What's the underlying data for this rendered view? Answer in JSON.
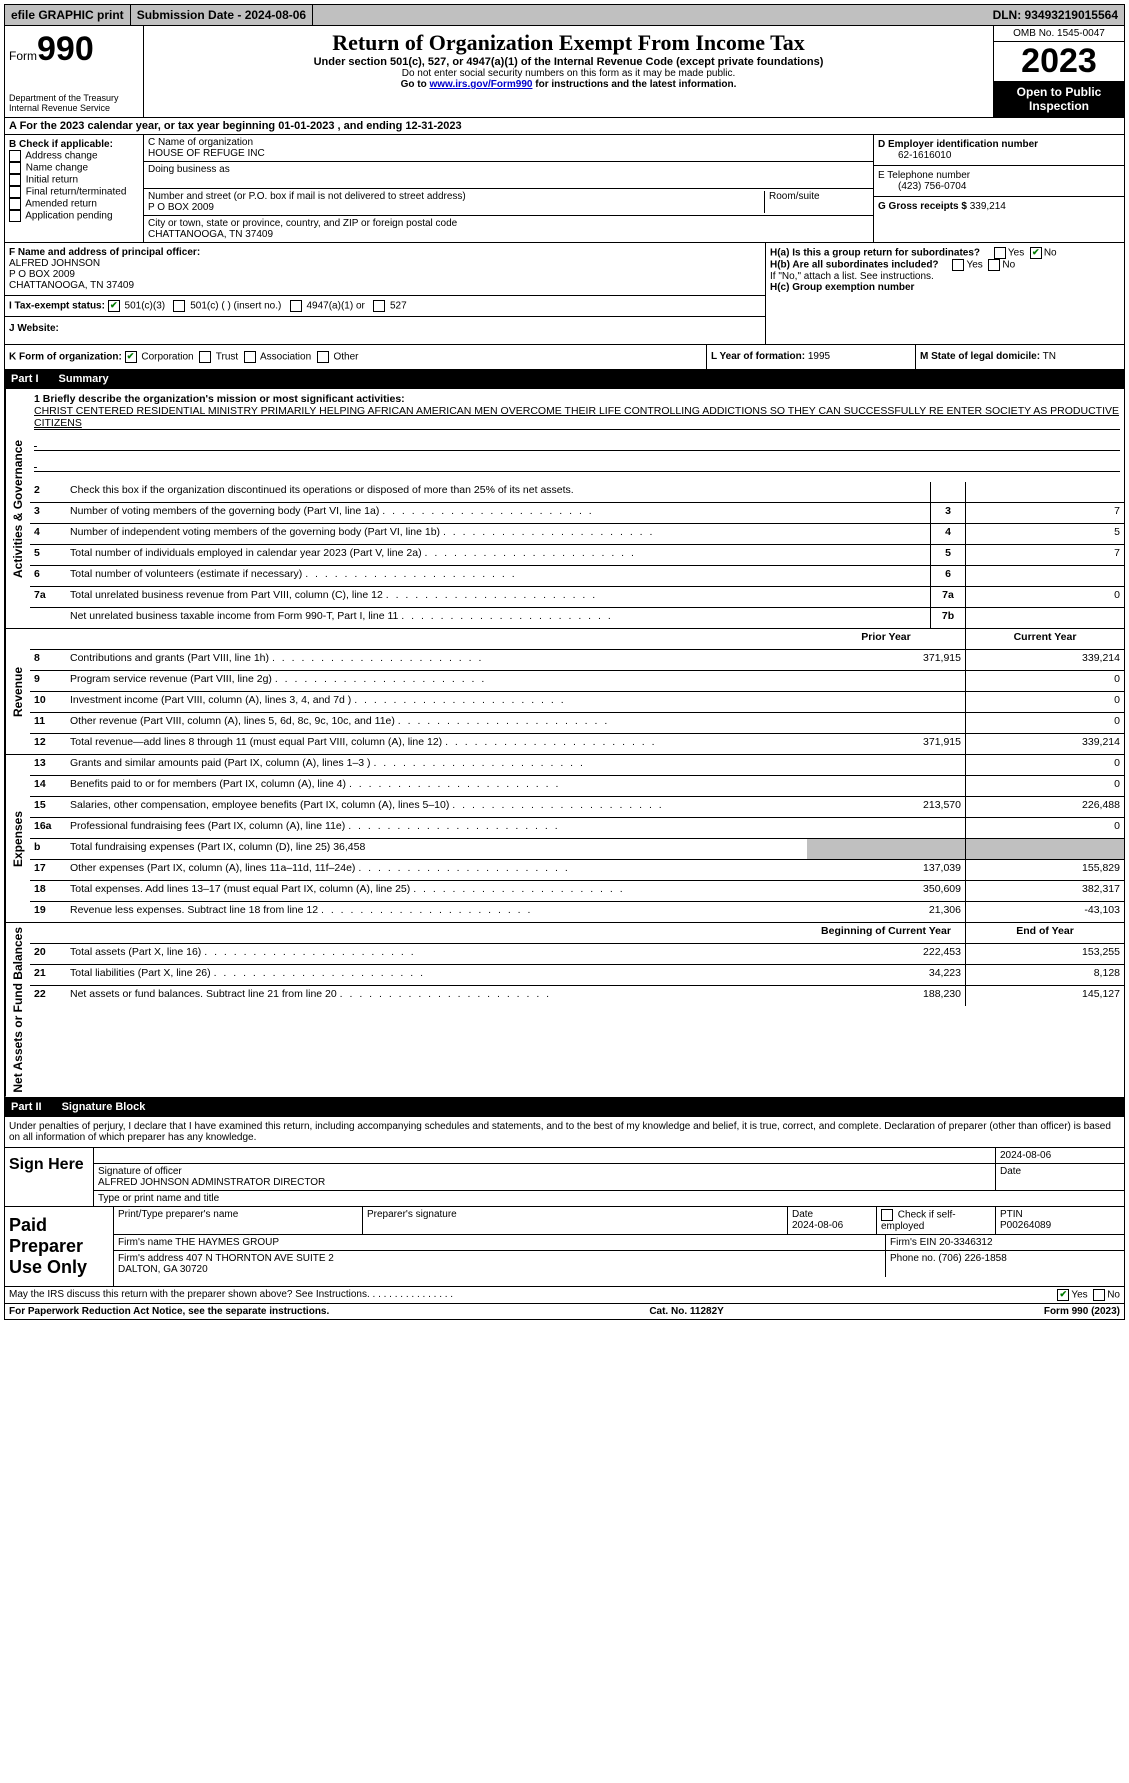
{
  "topbar": {
    "efile": "efile GRAPHIC print",
    "submission": "Submission Date - 2024-08-06",
    "dln": "DLN: 93493219015564"
  },
  "header": {
    "form_label": "Form",
    "form_num": "990",
    "dept": "Department of the Treasury\nInternal Revenue Service",
    "title": "Return of Organization Exempt From Income Tax",
    "sub": "Under section 501(c), 527, or 4947(a)(1) of the Internal Revenue Code (except private foundations)",
    "ssn_note": "Do not enter social security numbers on this form as it may be made public.",
    "goto": "Go to www.irs.gov/Form990 for instructions and the latest information.",
    "omb": "OMB No. 1545-0047",
    "year": "2023",
    "open": "Open to Public Inspection"
  },
  "row_a": "A For the 2023 calendar year, or tax year beginning 01-01-2023  , and ending 12-31-2023",
  "box_b": {
    "label": "B Check if applicable:",
    "items": [
      "Address change",
      "Name change",
      "Initial return",
      "Final return/terminated",
      "Amended return",
      "Application pending"
    ]
  },
  "box_c": {
    "name_label": "C Name of organization",
    "name": "HOUSE OF REFUGE INC",
    "dba_label": "Doing business as",
    "street_label": "Number and street (or P.O. box if mail is not delivered to street address)",
    "street": "P O BOX 2009",
    "room_label": "Room/suite",
    "city_label": "City or town, state or province, country, and ZIP or foreign postal code",
    "city": "CHATTANOOGA, TN  37409"
  },
  "box_d": {
    "ein_label": "D Employer identification number",
    "ein": "62-1616010",
    "phone_label": "E Telephone number",
    "phone": "(423) 756-0704",
    "gross_label": "G Gross receipts $",
    "gross": "339,214"
  },
  "box_f": {
    "label": "F  Name and address of principal officer:",
    "name": "ALFRED JOHNSON",
    "addr1": "P O BOX 2009",
    "addr2": "CHATTANOOGA, TN  37409"
  },
  "box_h": {
    "ha": "H(a)  Is this a group return for subordinates?",
    "hb": "H(b)  Are all subordinates included?",
    "hb_note": "If \"No,\" attach a list. See instructions.",
    "hc": "H(c)  Group exemption number ",
    "yes": "Yes",
    "no": "No"
  },
  "box_i": {
    "label": "I  Tax-exempt status:",
    "opt1": "501(c)(3)",
    "opt2": "501(c) (  ) (insert no.)",
    "opt3": "4947(a)(1) or",
    "opt4": "527"
  },
  "box_j": {
    "label": "J  Website: "
  },
  "box_k": {
    "label": "K Form of organization:",
    "corp": "Corporation",
    "trust": "Trust",
    "assoc": "Association",
    "other": "Other"
  },
  "box_l": {
    "label": "L Year of formation:",
    "val": "1995"
  },
  "box_m": {
    "label": "M State of legal domicile:",
    "val": "TN"
  },
  "part1": {
    "label": "Part I",
    "title": "Summary"
  },
  "side": {
    "ag": "Activities & Governance",
    "rev": "Revenue",
    "exp": "Expenses",
    "na": "Net Assets or Fund Balances"
  },
  "mission": {
    "label": "1  Briefly describe the organization's mission or most significant activities:",
    "text": "CHRIST CENTERED RESIDENTIAL MINISTRY PRIMARILY HELPING AFRICAN AMERICAN MEN OVERCOME THEIR LIFE CONTROLLING ADDICTIONS SO THEY CAN SUCCESSFULLY RE ENTER SOCIETY AS PRODUCTIVE CITIZENS"
  },
  "lines_gov": [
    {
      "n": "2",
      "t": "Check this box  if the organization discontinued its operations or disposed of more than 25% of its net assets.",
      "k": "",
      "v": ""
    },
    {
      "n": "3",
      "t": "Number of voting members of the governing body (Part VI, line 1a)",
      "k": "3",
      "v": "7"
    },
    {
      "n": "4",
      "t": "Number of independent voting members of the governing body (Part VI, line 1b)",
      "k": "4",
      "v": "5"
    },
    {
      "n": "5",
      "t": "Total number of individuals employed in calendar year 2023 (Part V, line 2a)",
      "k": "5",
      "v": "7"
    },
    {
      "n": "6",
      "t": "Total number of volunteers (estimate if necessary)",
      "k": "6",
      "v": ""
    },
    {
      "n": "7a",
      "t": "Total unrelated business revenue from Part VIII, column (C), line 12",
      "k": "7a",
      "v": "0"
    },
    {
      "n": "",
      "t": "Net unrelated business taxable income from Form 990-T, Part I, line 11",
      "k": "7b",
      "v": ""
    }
  ],
  "cols": {
    "prior": "Prior Year",
    "current": "Current Year",
    "begin": "Beginning of Current Year",
    "end": "End of Year"
  },
  "lines_rev": [
    {
      "n": "8",
      "t": "Contributions and grants (Part VIII, line 1h)",
      "p": "371,915",
      "c": "339,214"
    },
    {
      "n": "9",
      "t": "Program service revenue (Part VIII, line 2g)",
      "p": "",
      "c": "0"
    },
    {
      "n": "10",
      "t": "Investment income (Part VIII, column (A), lines 3, 4, and 7d )",
      "p": "",
      "c": "0"
    },
    {
      "n": "11",
      "t": "Other revenue (Part VIII, column (A), lines 5, 6d, 8c, 9c, 10c, and 11e)",
      "p": "",
      "c": "0"
    },
    {
      "n": "12",
      "t": "Total revenue—add lines 8 through 11 (must equal Part VIII, column (A), line 12)",
      "p": "371,915",
      "c": "339,214"
    }
  ],
  "lines_exp": [
    {
      "n": "13",
      "t": "Grants and similar amounts paid (Part IX, column (A), lines 1–3 )",
      "p": "",
      "c": "0"
    },
    {
      "n": "14",
      "t": "Benefits paid to or for members (Part IX, column (A), line 4)",
      "p": "",
      "c": "0"
    },
    {
      "n": "15",
      "t": "Salaries, other compensation, employee benefits (Part IX, column (A), lines 5–10)",
      "p": "213,570",
      "c": "226,488"
    },
    {
      "n": "16a",
      "t": "Professional fundraising fees (Part IX, column (A), line 11e)",
      "p": "",
      "c": "0"
    },
    {
      "n": "b",
      "t": "Total fundraising expenses (Part IX, column (D), line 25) 36,458",
      "p": "",
      "c": "",
      "shade": true
    },
    {
      "n": "17",
      "t": "Other expenses (Part IX, column (A), lines 11a–11d, 11f–24e)",
      "p": "137,039",
      "c": "155,829"
    },
    {
      "n": "18",
      "t": "Total expenses. Add lines 13–17 (must equal Part IX, column (A), line 25)",
      "p": "350,609",
      "c": "382,317"
    },
    {
      "n": "19",
      "t": "Revenue less expenses. Subtract line 18 from line 12",
      "p": "21,306",
      "c": "-43,103"
    }
  ],
  "lines_na": [
    {
      "n": "20",
      "t": "Total assets (Part X, line 16)",
      "p": "222,453",
      "c": "153,255"
    },
    {
      "n": "21",
      "t": "Total liabilities (Part X, line 26)",
      "p": "34,223",
      "c": "8,128"
    },
    {
      "n": "22",
      "t": "Net assets or fund balances. Subtract line 21 from line 20",
      "p": "188,230",
      "c": "145,127"
    }
  ],
  "part2": {
    "label": "Part II",
    "title": "Signature Block"
  },
  "sig_decl": "Under penalties of perjury, I declare that I have examined this return, including accompanying schedules and statements, and to the best of my knowledge and belief, it is true, correct, and complete. Declaration of preparer (other than officer) is based on all information of which preparer has any knowledge.",
  "sign": {
    "here": "Sign Here",
    "sig_label": "Signature of officer",
    "date_label": "Date",
    "date": "2024-08-06",
    "name": "ALFRED JOHNSON  ADMINSTRATOR DIRECTOR",
    "name_label": "Type or print name and title"
  },
  "paid": {
    "title": "Paid Preparer Use Only",
    "name_label": "Print/Type preparer's name",
    "sig_label": "Preparer's signature",
    "date_label": "Date",
    "date": "2024-08-06",
    "check_label": "Check  if self-employed",
    "ptin_label": "PTIN",
    "ptin": "P00264089",
    "firm_name_label": "Firm's name    ",
    "firm_name": "THE HAYMES GROUP",
    "firm_ein_label": "Firm's EIN  ",
    "firm_ein": "20-3346312",
    "firm_addr_label": "Firm's address ",
    "firm_addr": "407 N THORNTON AVE SUITE 2\nDALTON, GA  30720",
    "phone_label": "Phone no.",
    "phone": "(706) 226-1858"
  },
  "discuss": {
    "text": "May the IRS discuss this return with the preparer shown above? See Instructions.",
    "yes": "Yes",
    "no": "No"
  },
  "footer": {
    "pra": "For Paperwork Reduction Act Notice, see the separate instructions.",
    "cat": "Cat. No. 11282Y",
    "form": "Form 990 (2023)"
  }
}
